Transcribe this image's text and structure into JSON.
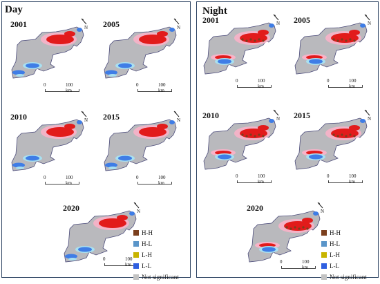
{
  "panels": {
    "day": {
      "title": "Day",
      "maps": [
        {
          "year": "2001"
        },
        {
          "year": "2005"
        },
        {
          "year": "2010"
        },
        {
          "year": "2015"
        },
        {
          "year": "2020"
        }
      ]
    },
    "night": {
      "title": "Night",
      "maps": [
        {
          "year": "2001"
        },
        {
          "year": "2005"
        },
        {
          "year": "2010"
        },
        {
          "year": "2015"
        },
        {
          "year": "2020"
        }
      ]
    }
  },
  "scale": {
    "zero": "0",
    "dist": "100 km"
  },
  "north_label": "N",
  "legend": [
    {
      "label": "H-H",
      "color": "#7b3f1d"
    },
    {
      "label": "H-L",
      "color": "#5a95c9"
    },
    {
      "label": "L-H",
      "color": "#c8b400"
    },
    {
      "label": "L-L",
      "color": "#2f5fe0"
    },
    {
      "label": "Not significant",
      "color": "#c3c3c3"
    }
  ],
  "colors": {
    "boundary": "#4b4b7a",
    "base": "#b9b9bd",
    "hot": "#e21b1b",
    "halo": "#f8b3c8",
    "cold": "#3f7de6",
    "cold_halo": "#a9e0f0"
  }
}
